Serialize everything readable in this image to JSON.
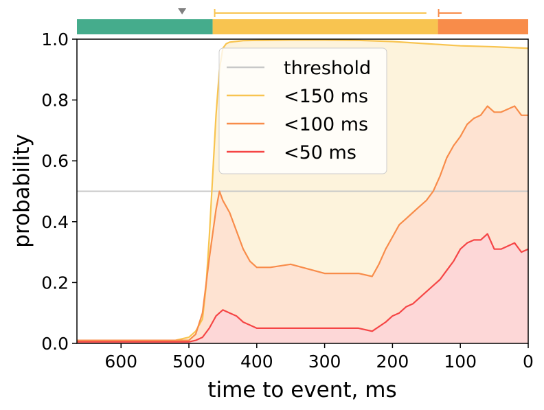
{
  "chart_data": {
    "type": "line",
    "xlabel": "time to event, ms",
    "ylabel": "probability",
    "xlim": [
      665,
      0
    ],
    "ylim": [
      0,
      1
    ],
    "x_ticks": [
      600,
      500,
      400,
      300,
      200,
      100,
      0
    ],
    "x_tick_labels": [
      "600",
      "500",
      "400",
      "300",
      "200",
      "100",
      "0"
    ],
    "y_ticks": [
      0.0,
      0.2,
      0.4,
      0.6,
      0.8,
      1.0
    ],
    "y_tick_labels": [
      "0.0",
      "0.2",
      "0.4",
      "0.6",
      "0.8",
      "1.0"
    ],
    "legend_position": "top-center",
    "threshold": {
      "name": "threshold",
      "value": 0.5,
      "color": "#c8c8c8"
    },
    "series": [
      {
        "name": "<150 ms",
        "color": "#f8c450",
        "fill": "#fdf3dc",
        "x": [
          665,
          600,
          520,
          500,
          490,
          480,
          475,
          470,
          465,
          460,
          455,
          450,
          445,
          440,
          420,
          400,
          350,
          300,
          250,
          200,
          150,
          100,
          50,
          0
        ],
        "values": [
          0.01,
          0.01,
          0.01,
          0.02,
          0.04,
          0.08,
          0.18,
          0.35,
          0.55,
          0.75,
          0.9,
          0.97,
          0.985,
          0.99,
          0.995,
          0.996,
          0.997,
          0.997,
          0.996,
          0.992,
          0.985,
          0.978,
          0.975,
          0.97
        ]
      },
      {
        "name": "<100 ms",
        "color": "#f88c4a",
        "fill": "#fee3d2",
        "x": [
          665,
          600,
          520,
          500,
          490,
          480,
          470,
          460,
          455,
          450,
          440,
          430,
          420,
          410,
          400,
          380,
          350,
          300,
          250,
          230,
          220,
          210,
          200,
          190,
          180,
          170,
          160,
          150,
          140,
          130,
          120,
          110,
          100,
          90,
          80,
          70,
          60,
          50,
          40,
          30,
          20,
          10,
          0
        ],
        "values": [
          0.01,
          0.01,
          0.01,
          0.01,
          0.03,
          0.1,
          0.28,
          0.44,
          0.5,
          0.47,
          0.43,
          0.37,
          0.31,
          0.27,
          0.25,
          0.25,
          0.26,
          0.23,
          0.23,
          0.22,
          0.26,
          0.31,
          0.35,
          0.39,
          0.41,
          0.43,
          0.45,
          0.47,
          0.5,
          0.55,
          0.61,
          0.65,
          0.68,
          0.72,
          0.74,
          0.75,
          0.78,
          0.76,
          0.76,
          0.77,
          0.78,
          0.75,
          0.75
        ]
      },
      {
        "name": "<50 ms",
        "color": "#f54545",
        "fill": "#fdd7d7",
        "x": [
          665,
          600,
          520,
          500,
          490,
          480,
          470,
          460,
          450,
          440,
          430,
          420,
          410,
          400,
          380,
          350,
          300,
          250,
          230,
          210,
          200,
          190,
          180,
          170,
          160,
          150,
          140,
          130,
          120,
          110,
          100,
          90,
          80,
          70,
          60,
          50,
          40,
          30,
          20,
          10,
          0
        ],
        "values": [
          0.005,
          0.005,
          0.005,
          0.005,
          0.01,
          0.02,
          0.05,
          0.09,
          0.11,
          0.1,
          0.09,
          0.07,
          0.06,
          0.05,
          0.05,
          0.05,
          0.05,
          0.05,
          0.04,
          0.07,
          0.09,
          0.1,
          0.12,
          0.13,
          0.15,
          0.17,
          0.19,
          0.21,
          0.24,
          0.27,
          0.31,
          0.33,
          0.34,
          0.34,
          0.36,
          0.31,
          0.31,
          0.32,
          0.33,
          0.3,
          0.31
        ]
      }
    ],
    "top_bar": {
      "segments": [
        {
          "from": 665,
          "to": 465,
          "color": "#45ac8c"
        },
        {
          "from": 465,
          "to": 133,
          "color": "#f8c450"
        },
        {
          "from": 133,
          "to": 0,
          "color": "#f88c4a"
        }
      ],
      "marker": {
        "x": 510,
        "color": "#808080"
      },
      "intervals": [
        {
          "from": 462,
          "to": 150,
          "color": "#f8c450"
        },
        {
          "from": 132,
          "to": 98,
          "color": "#f88c4a"
        }
      ]
    }
  }
}
